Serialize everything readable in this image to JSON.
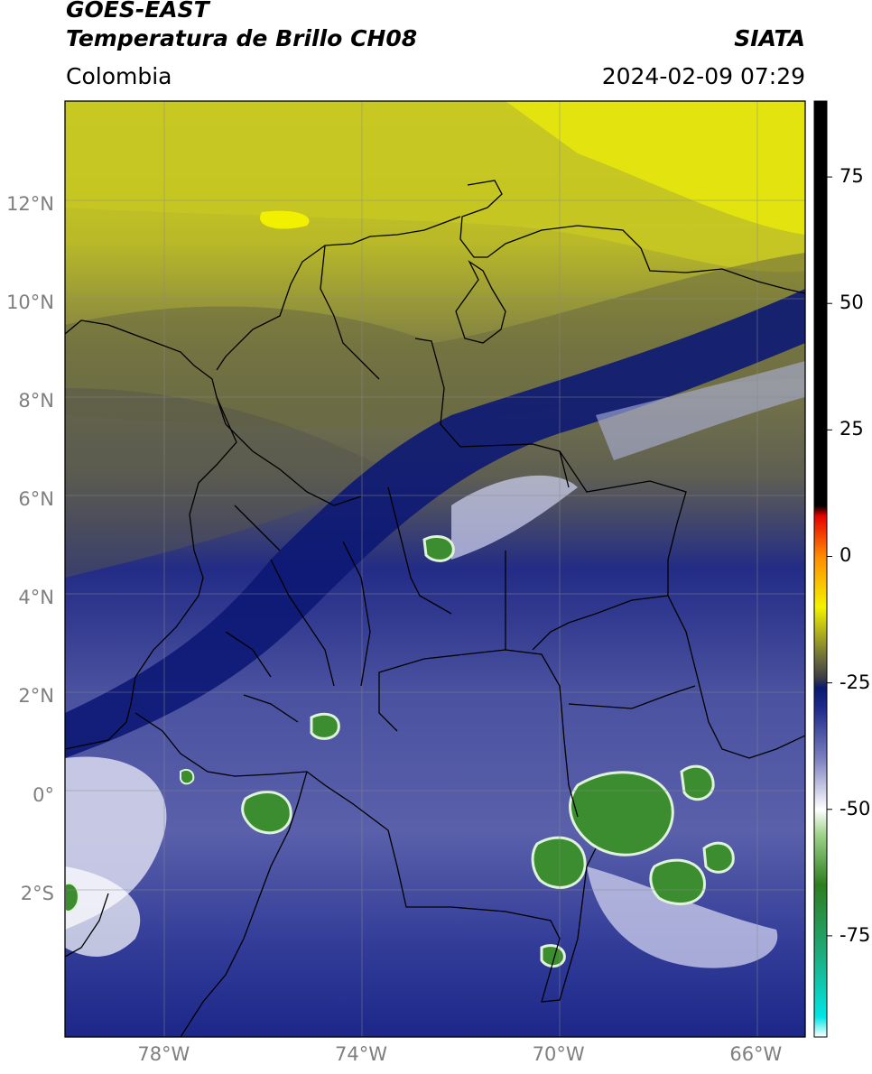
{
  "header": {
    "title_line1": "GOES-EAST",
    "title_line2": "Temperatura de Brillo CH08",
    "source": "SIATA",
    "region": "Colombia",
    "timestamp": "2024-02-09 07:29"
  },
  "axes": {
    "lat_labels": [
      {
        "text": "12°N",
        "lat": 12
      },
      {
        "text": "10°N",
        "lat": 10
      },
      {
        "text": "8°N",
        "lat": 8
      },
      {
        "text": "6°N",
        "lat": 6
      },
      {
        "text": "4°N",
        "lat": 4
      },
      {
        "text": "2°N",
        "lat": 2
      },
      {
        "text": "0°",
        "lat": 0
      },
      {
        "text": "2°S",
        "lat": -2
      }
    ],
    "lon_labels": [
      {
        "text": "78°W",
        "lon": -78
      },
      {
        "text": "74°W",
        "lon": -74
      },
      {
        "text": "70°W",
        "lon": -70
      },
      {
        "text": "66°W",
        "lon": -66
      }
    ],
    "lon_range": [
      -80,
      -65
    ],
    "lat_range": [
      -4.9,
      14.1
    ]
  },
  "colorbar": {
    "range": [
      -95,
      90
    ],
    "ticks": [
      {
        "text": "75",
        "value": 75
      },
      {
        "text": "50",
        "value": 50
      },
      {
        "text": "25",
        "value": 25
      },
      {
        "text": "0",
        "value": 0
      },
      {
        "text": "-25",
        "value": -25
      },
      {
        "text": "-50",
        "value": -50
      },
      {
        "text": "-75",
        "value": -75
      }
    ],
    "stops": [
      {
        "value": -95,
        "color": "#ffffff"
      },
      {
        "value": -91,
        "color": "#00e5e5"
      },
      {
        "value": -78,
        "color": "#1faa78"
      },
      {
        "value": -65,
        "color": "#2e7d1e"
      },
      {
        "value": -55,
        "color": "#9ed38a"
      },
      {
        "value": -50,
        "color": "#ffffff"
      },
      {
        "value": -40,
        "color": "#7c80be"
      },
      {
        "value": -30,
        "color": "#1e2a8c"
      },
      {
        "value": -26,
        "color": "#0b1a70"
      },
      {
        "value": -24,
        "color": "#3d3d44"
      },
      {
        "value": -20,
        "color": "#6e6e3a"
      },
      {
        "value": -10,
        "color": "#f3f300"
      },
      {
        "value": 0,
        "color": "#ff8c00"
      },
      {
        "value": 8,
        "color": "#e60000"
      },
      {
        "value": 10,
        "color": "#000000"
      },
      {
        "value": 90,
        "color": "#000000"
      }
    ]
  }
}
